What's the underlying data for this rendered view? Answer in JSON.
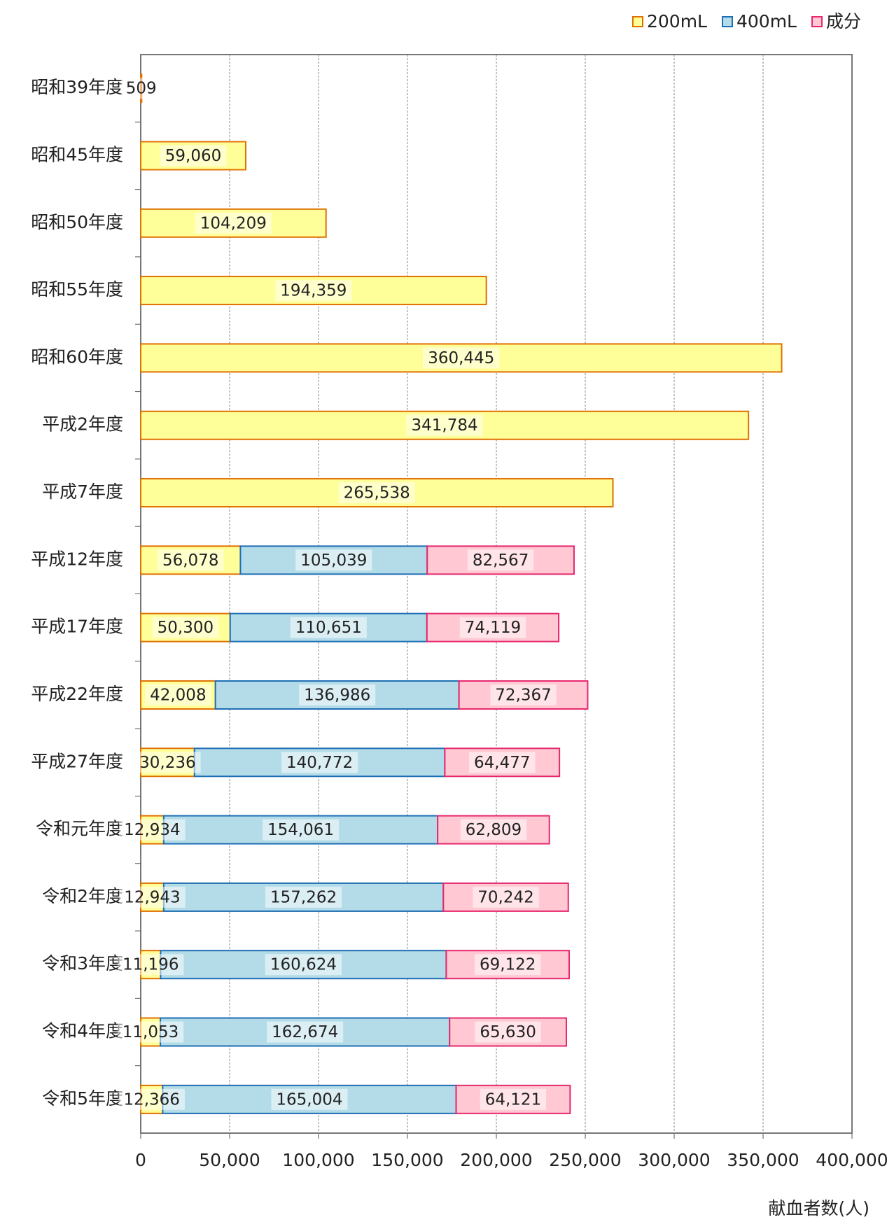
{
  "chart_data": {
    "type": "bar",
    "orientation": "horizontal",
    "stacked": true,
    "x_label": "献血者数(人)",
    "categories": [
      "昭和39年度",
      "昭和45年度",
      "昭和50年度",
      "昭和55年度",
      "昭和60年度",
      "平成2年度",
      "平成7年度",
      "平成12年度",
      "平成17年度",
      "平成22年度",
      "平成27年度",
      "令和元年度",
      "令和2年度",
      "令和3年度",
      "令和4年度",
      "令和5年度"
    ],
    "series": [
      {
        "name": "200mL",
        "color": "#ffff99",
        "border": "#e07000",
        "values": [
          509,
          59060,
          104209,
          194359,
          360445,
          341784,
          265538,
          56078,
          50300,
          42008,
          30236,
          12934,
          12943,
          11196,
          11053,
          12366
        ],
        "value_labels": [
          "509",
          "59,060",
          "104,209",
          "194,359",
          "360,445",
          "341,784",
          "265,538",
          "56,078",
          "50,300",
          "42,008",
          "30,236",
          "12,934",
          "12,943",
          "11,196",
          "11,053",
          "12,366"
        ]
      },
      {
        "name": "400mL",
        "color": "#b4dce8",
        "border": "#1e6eb4",
        "values": [
          null,
          null,
          null,
          null,
          null,
          null,
          null,
          105039,
          110651,
          136986,
          140772,
          154061,
          157262,
          160624,
          162674,
          165004
        ],
        "value_labels": [
          null,
          null,
          null,
          null,
          null,
          null,
          null,
          "105,039",
          "110,651",
          "136,986",
          "140,772",
          "154,061",
          "157,262",
          "160,624",
          "162,674",
          "165,004"
        ]
      },
      {
        "name": "成分",
        "color": "#ffc8d2",
        "border": "#e6286e",
        "values": [
          null,
          null,
          null,
          null,
          null,
          null,
          null,
          82567,
          74119,
          72367,
          64477,
          62809,
          70242,
          69122,
          65630,
          64121
        ],
        "value_labels": [
          null,
          null,
          null,
          null,
          null,
          null,
          null,
          "82,567",
          "74,119",
          "72,367",
          "64,477",
          "62,809",
          "70,242",
          "69,122",
          "65,630",
          "64,121"
        ]
      }
    ],
    "xlim": [
      0,
      400000
    ],
    "xticks": [
      0,
      {
        "value": 50000,
        "label": "50,000"
      },
      {
        "value": 100000,
        "label": "100,000"
      },
      {
        "value": 150000,
        "label": "150,000"
      },
      {
        "value": 200000,
        "label": "200,000"
      },
      {
        "value": 250000,
        "label": "250,000"
      },
      {
        "value": 300000,
        "label": "300,000"
      },
      {
        "value": 350000,
        "label": "350,000"
      },
      {
        "value": 400000,
        "label": "400,000"
      }
    ],
    "grid": true,
    "legend": "top-right"
  }
}
